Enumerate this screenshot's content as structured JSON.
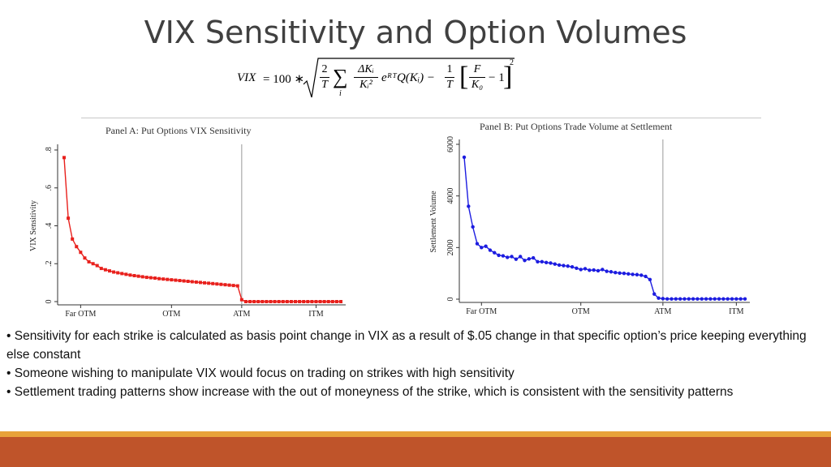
{
  "slide": {
    "title": "VIX Sensitivity and Option Volumes",
    "formula": {
      "lhs": "VIX",
      "eq": "= 100 ∗",
      "f1_num": "2",
      "f1_den": "T",
      "sum": "∑",
      "sum_sub": "i",
      "f2_num": "ΔKᵢ",
      "f2_den": "Kᵢ²",
      "term": "eᴿᵀQ(Kᵢ) −",
      "f3_num": "1",
      "f3_den": "T",
      "f4_num": "F",
      "f4_den": "K₀",
      "tail": "− 1",
      "exp": "2"
    },
    "bullets": [
      "•   Sensitivity for each strike is calculated as basis point change in VIX as a result of $.05 change in that specific option’s price keeping everything else constant",
      "•    Someone wishing to manipulate VIX would focus on trading on strikes with high sensitivity",
      "•    Settlement trading patterns show increase with the out of moneyness of  the strike, which is consistent with the sensitivity patterns"
    ],
    "colors": {
      "band_top": "#e8a23a",
      "band_bottom": "#bf542a",
      "series_a": "#e8201c",
      "series_b": "#1c1ce0"
    }
  },
  "chart_data": [
    {
      "type": "line",
      "title": "Panel A: Put Options VIX Sensitivity",
      "ylabel": "VIX Sensitivity",
      "xlabel": "",
      "ylim": [
        0,
        0.8
      ],
      "yticks": [
        0,
        0.2,
        0.4,
        0.6,
        0.8
      ],
      "ytick_labels": [
        "0",
        ".2",
        ".4",
        ".6",
        ".8"
      ],
      "xtick_labels": [
        "Far OTM",
        "OTM",
        "ATM",
        "ITM"
      ],
      "xtick_index": [
        4,
        26,
        43,
        61
      ],
      "atm_index": 43,
      "marker": "square",
      "color": "#e8201c",
      "series": [
        {
          "values": [
            0.76,
            0.44,
            0.33,
            0.29,
            0.26,
            0.23,
            0.21,
            0.2,
            0.19,
            0.175,
            0.168,
            0.162,
            0.156,
            0.152,
            0.148,
            0.144,
            0.14,
            0.137,
            0.134,
            0.131,
            0.128,
            0.126,
            0.124,
            0.121,
            0.119,
            0.117,
            0.115,
            0.113,
            0.111,
            0.109,
            0.107,
            0.105,
            0.103,
            0.101,
            0.099,
            0.097,
            0.095,
            0.093,
            0.091,
            0.089,
            0.087,
            0.085,
            0.083,
            0.01,
            0,
            0,
            0,
            0,
            0,
            0,
            0,
            0,
            0,
            0,
            0,
            0,
            0,
            0,
            0,
            0,
            0,
            0,
            0,
            0,
            0,
            0,
            0,
            0
          ]
        }
      ]
    },
    {
      "type": "line",
      "title": "Panel B: Put Options Trade Volume at Settlement",
      "ylabel": "Settlement Volume",
      "xlabel": "",
      "ylim": [
        0,
        6000
      ],
      "yticks": [
        0,
        2000,
        4000,
        6000
      ],
      "ytick_labels": [
        "0",
        "2000",
        "4000",
        "6000"
      ],
      "xtick_labels": [
        "Far OTM",
        "OTM",
        "ATM",
        "ITM"
      ],
      "xtick_index": [
        4,
        27,
        46,
        63
      ],
      "atm_index": 46,
      "marker": "circle",
      "color": "#1c1ce0",
      "series": [
        {
          "values": [
            5500,
            3600,
            2800,
            2150,
            2000,
            2050,
            1900,
            1800,
            1700,
            1680,
            1620,
            1650,
            1550,
            1650,
            1500,
            1560,
            1600,
            1450,
            1450,
            1420,
            1400,
            1360,
            1320,
            1300,
            1280,
            1250,
            1200,
            1150,
            1180,
            1120,
            1130,
            1100,
            1150,
            1080,
            1060,
            1030,
            1010,
            1000,
            980,
            960,
            950,
            930,
            880,
            760,
            200,
            40,
            20,
            10,
            10,
            10,
            10,
            10,
            10,
            10,
            10,
            10,
            10,
            10,
            10,
            10,
            10,
            10,
            10,
            10,
            10,
            10
          ]
        }
      ]
    }
  ]
}
